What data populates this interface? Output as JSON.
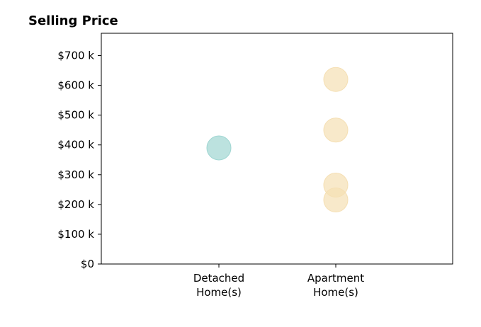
{
  "chart_data": {
    "type": "scatter",
    "title": "Selling Price",
    "xlabel": "",
    "ylabel": "",
    "categories": [
      [
        "Detached",
        "Home(s)"
      ],
      [
        "Apartment",
        "Home(s)"
      ]
    ],
    "ylim": [
      0,
      775
    ],
    "y_ticks": [
      0,
      100,
      200,
      300,
      400,
      500,
      600,
      700
    ],
    "y_tick_labels": [
      "$0",
      "$100 k",
      "$200 k",
      "$300 k",
      "$400 k",
      "$500 k",
      "$600 k",
      "$700 k"
    ],
    "series": [
      {
        "category": 0,
        "color": "#9fd6d2",
        "values": [
          390
        ]
      },
      {
        "category": 1,
        "color": "#f5dfb3",
        "values": [
          620,
          450,
          265,
          215
        ]
      }
    ],
    "grid": false,
    "legend": "none"
  }
}
